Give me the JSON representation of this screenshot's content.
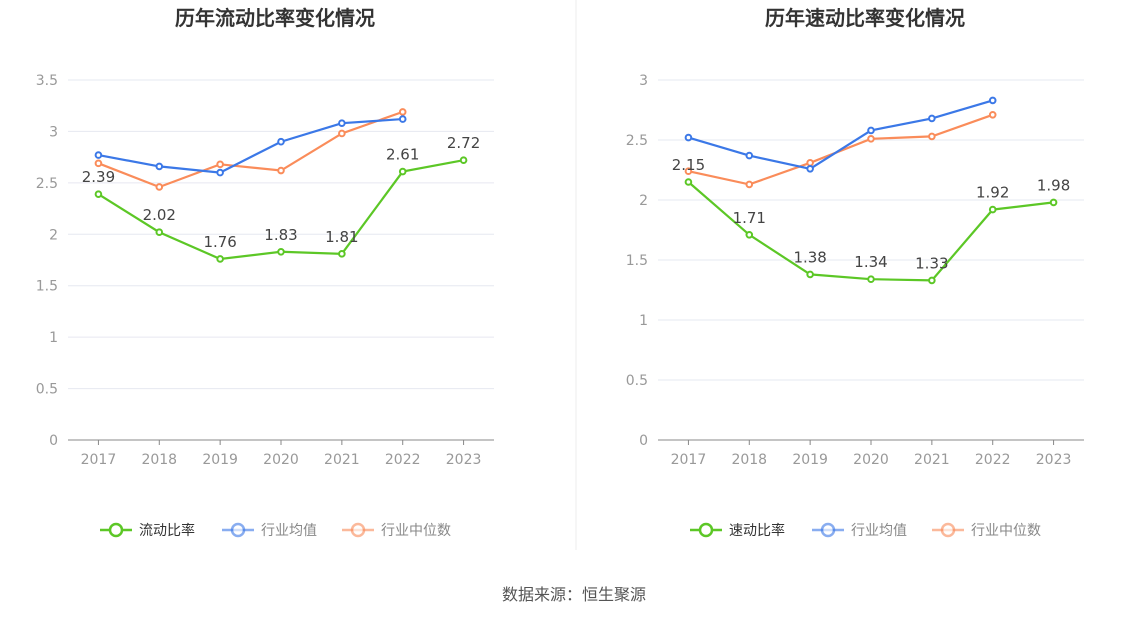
{
  "source": "数据来源：恒生聚源",
  "colors": {
    "company": "#5cc726",
    "average": "#3b78e7",
    "median": "#fa8c5a",
    "axis": "#999999",
    "grid": "#e6e8f0"
  },
  "chart_data": [
    {
      "type": "line",
      "title": "历年流动比率变化情况",
      "categories": [
        "2017",
        "2018",
        "2019",
        "2020",
        "2021",
        "2022",
        "2023"
      ],
      "ylim": [
        0,
        3.5
      ],
      "yticks": [
        "0",
        "0.5",
        "1",
        "1.5",
        "2",
        "2.5",
        "3",
        "3.5"
      ],
      "grid": true,
      "legend_position": "bottom",
      "series": [
        {
          "name": "流动比率",
          "key": "company",
          "values": [
            2.39,
            2.02,
            1.76,
            1.83,
            1.81,
            2.61,
            2.72
          ],
          "labels": [
            "2.39",
            "2.02",
            "1.76",
            "1.83",
            "1.81",
            "2.61",
            "2.72"
          ]
        },
        {
          "name": "行业均值",
          "key": "average",
          "values": [
            2.77,
            2.66,
            2.6,
            2.9,
            3.08,
            3.12,
            null
          ]
        },
        {
          "name": "行业中位数",
          "key": "median",
          "values": [
            2.69,
            2.46,
            2.68,
            2.62,
            2.98,
            3.19,
            null
          ]
        }
      ]
    },
    {
      "type": "line",
      "title": "历年速动比率变化情况",
      "categories": [
        "2017",
        "2018",
        "2019",
        "2020",
        "2021",
        "2022",
        "2023"
      ],
      "ylim": [
        0,
        3
      ],
      "yticks": [
        "0",
        "0.5",
        "1",
        "1.5",
        "2",
        "2.5",
        "3"
      ],
      "grid": true,
      "legend_position": "bottom",
      "series": [
        {
          "name": "速动比率",
          "key": "company",
          "values": [
            2.15,
            1.71,
            1.38,
            1.34,
            1.33,
            1.92,
            1.98
          ],
          "labels": [
            "2.15",
            "1.71",
            "1.38",
            "1.34",
            "1.33",
            "1.92",
            "1.98"
          ]
        },
        {
          "name": "行业均值",
          "key": "average",
          "values": [
            2.52,
            2.37,
            2.26,
            2.58,
            2.68,
            2.83,
            null
          ]
        },
        {
          "name": "行业中位数",
          "key": "median",
          "values": [
            2.24,
            2.13,
            2.31,
            2.51,
            2.53,
            2.71,
            null
          ]
        }
      ]
    }
  ]
}
